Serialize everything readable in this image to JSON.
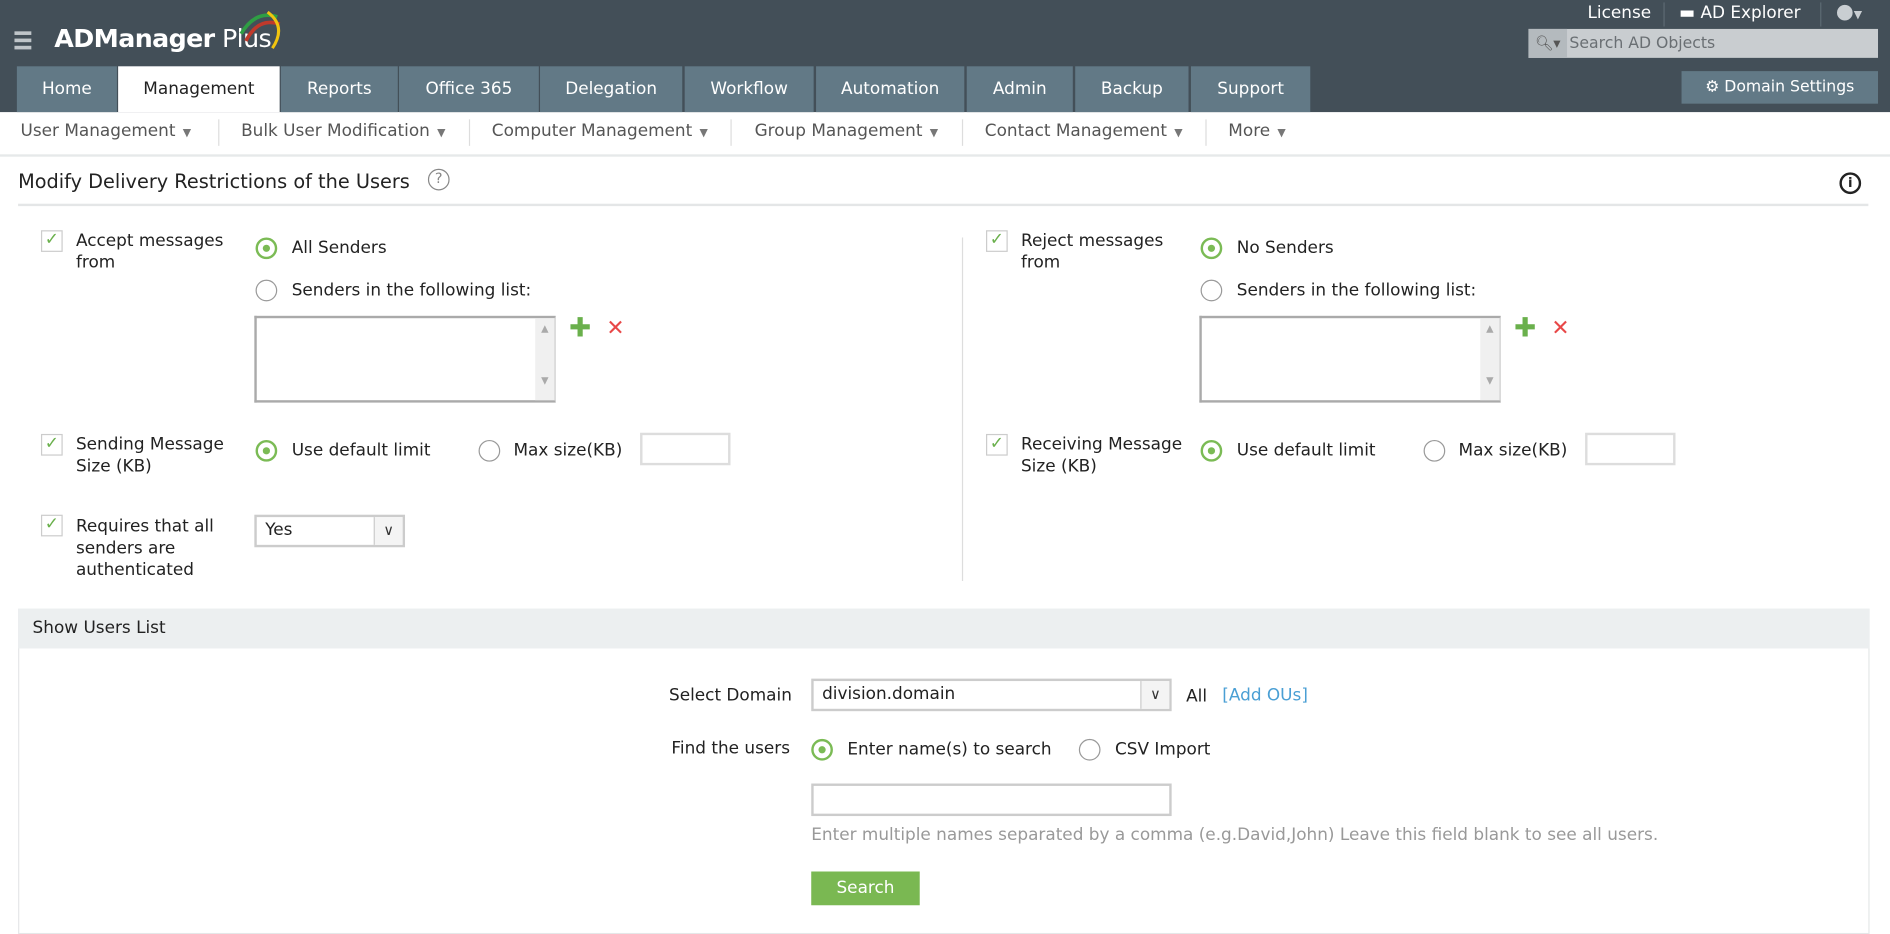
{
  "header": {
    "logo_main": "ADManager",
    "logo_sub": " Plus",
    "license": "License",
    "ad_explorer": "AD Explorer",
    "search_placeholder": "Search AD Objects",
    "domain_settings": "Domain Settings"
  },
  "tabs": [
    "Home",
    "Management",
    "Reports",
    "Office 365",
    "Delegation",
    "Workflow",
    "Automation",
    "Admin",
    "Backup",
    "Support"
  ],
  "active_tab": "Management",
  "subnav": [
    "User Management",
    "Bulk User Modification",
    "Computer Management",
    "Group Management",
    "Contact Management",
    "More"
  ],
  "page": {
    "title": "Modify Delivery Restrictions of the Users"
  },
  "left": {
    "accept_label": "Accept messages from",
    "accept_checked": true,
    "all_senders": "All Senders",
    "senders_list": "Senders in the following list:",
    "send_size_label": "Sending Message Size (KB)",
    "send_size_checked": true,
    "use_default": "Use default limit",
    "max_size": "Max size(KB)",
    "auth_label": "Requires that all senders are authenticated",
    "auth_checked": true,
    "auth_value": "Yes"
  },
  "right": {
    "reject_label": "Reject messages from",
    "reject_checked": true,
    "no_senders": "No Senders",
    "senders_list": "Senders in the following list:",
    "recv_size_label": "Receiving Message Size (KB)",
    "recv_size_checked": true,
    "use_default": "Use default limit",
    "max_size": "Max size(KB)"
  },
  "users": {
    "header": "Show Users List",
    "select_domain_label": "Select Domain",
    "domain_value": "division.domain",
    "all": "All",
    "add_ous": "[Add OUs]",
    "find_label": "Find the users",
    "opt_names": "Enter name(s) to search",
    "opt_csv": "CSV Import",
    "hint": "Enter multiple names separated by a comma (e.g.David,John) Leave this field blank to see all users.",
    "search_button": "Search"
  },
  "colors": {
    "header_bg": "#434f58",
    "tab_bg": "#627986",
    "accent_green": "#7ab852",
    "remove_red": "#e84848",
    "link": "#4a9fd4"
  }
}
